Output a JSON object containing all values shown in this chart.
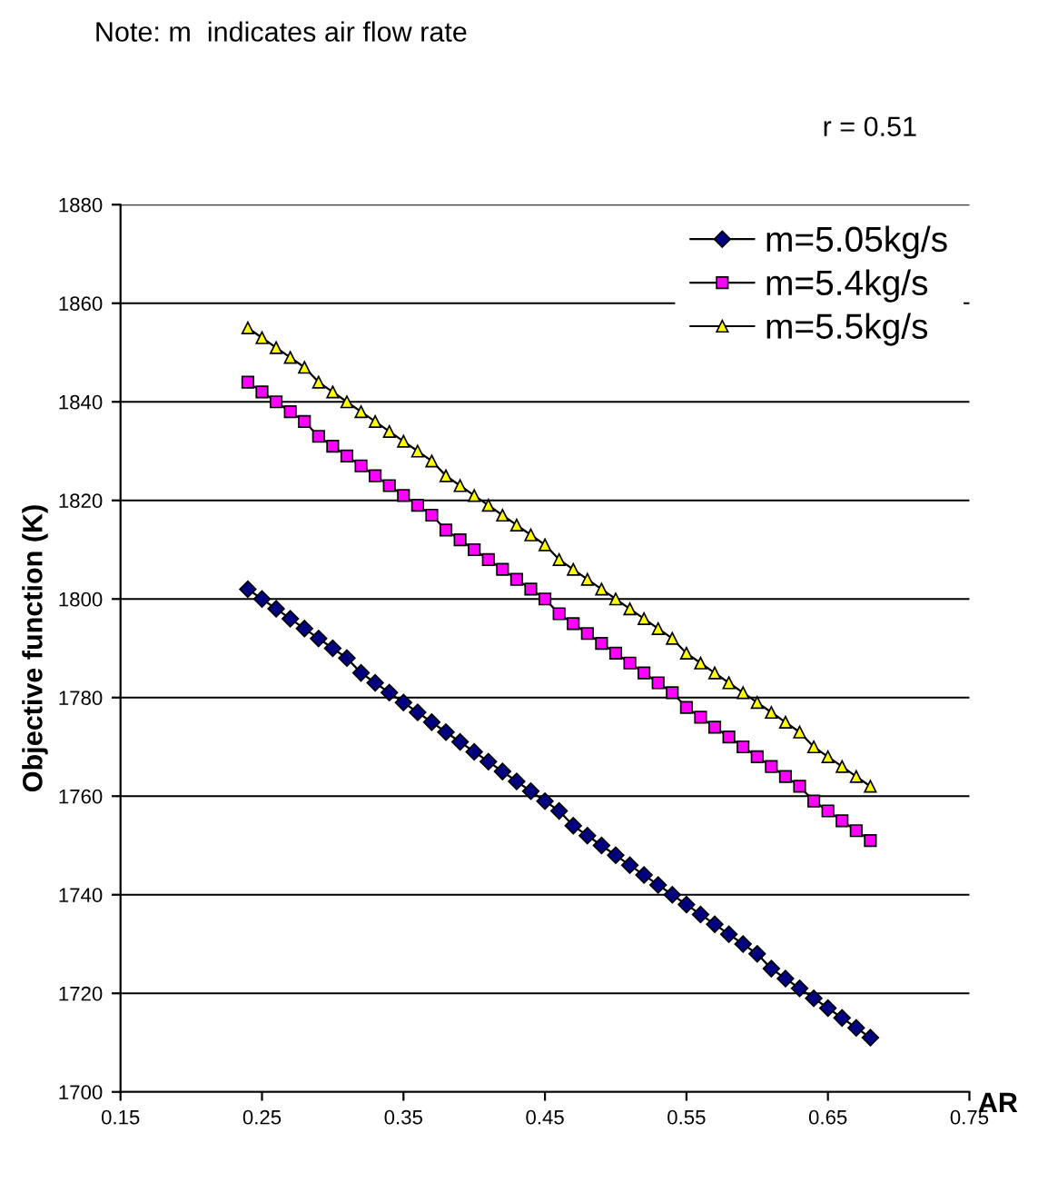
{
  "chart_data": {
    "type": "line",
    "title": "r = 0.51",
    "xlabel": "AR",
    "ylabel": "Objective function (K)",
    "annotations": [
      "Note: m  indicates air flow rate"
    ],
    "x": [
      0.24,
      0.25,
      0.26,
      0.27,
      0.28,
      0.29,
      0.3,
      0.31,
      0.32,
      0.33,
      0.34,
      0.35,
      0.36,
      0.37,
      0.38,
      0.39,
      0.4,
      0.41,
      0.42,
      0.43,
      0.44,
      0.45,
      0.46,
      0.47,
      0.48,
      0.49,
      0.5,
      0.51,
      0.52,
      0.53,
      0.54,
      0.55,
      0.56,
      0.57,
      0.58,
      0.59,
      0.6,
      0.61,
      0.62,
      0.63,
      0.64,
      0.65,
      0.66,
      0.67,
      0.68
    ],
    "series": [
      {
        "name": "m=5.05kg/s",
        "color": "#000080",
        "marker": "diamond",
        "values": [
          1802,
          1800,
          1798,
          1796,
          1794,
          1792,
          1790,
          1788,
          1785,
          1783,
          1781,
          1779,
          1777,
          1775,
          1773,
          1771,
          1769,
          1767,
          1765,
          1763,
          1761,
          1759,
          1757,
          1754,
          1752,
          1750,
          1748,
          1746,
          1744,
          1742,
          1740,
          1738,
          1736,
          1734,
          1732,
          1730,
          1728,
          1725,
          1723,
          1721,
          1719,
          1717,
          1715,
          1713,
          1711
        ]
      },
      {
        "name": "m=5.4kg/s",
        "color": "#ff00ff",
        "marker": "square",
        "values": [
          1844,
          1842,
          1840,
          1838,
          1836,
          1833,
          1831,
          1829,
          1827,
          1825,
          1823,
          1821,
          1819,
          1817,
          1814,
          1812,
          1810,
          1808,
          1806,
          1804,
          1802,
          1800,
          1797,
          1795,
          1793,
          1791,
          1789,
          1787,
          1785,
          1783,
          1781,
          1778,
          1776,
          1774,
          1772,
          1770,
          1768,
          1766,
          1764,
          1762,
          1759,
          1757,
          1755,
          1753,
          1751
        ]
      },
      {
        "name": "m=5.5kg/s",
        "color": "#ffff00",
        "marker": "triangle",
        "values": [
          1855,
          1853,
          1851,
          1849,
          1847,
          1844,
          1842,
          1840,
          1838,
          1836,
          1834,
          1832,
          1830,
          1828,
          1825,
          1823,
          1821,
          1819,
          1817,
          1815,
          1813,
          1811,
          1808,
          1806,
          1804,
          1802,
          1800,
          1798,
          1796,
          1794,
          1792,
          1789,
          1787,
          1785,
          1783,
          1781,
          1779,
          1777,
          1775,
          1773,
          1770,
          1768,
          1766,
          1764,
          1762
        ]
      }
    ],
    "xlim": [
      0.15,
      0.75
    ],
    "xticks": [
      0.15,
      0.25,
      0.35,
      0.45,
      0.55,
      0.65,
      0.75
    ],
    "ylim": [
      1700,
      1880
    ],
    "yticks": [
      1700,
      1720,
      1740,
      1760,
      1780,
      1800,
      1820,
      1840,
      1860,
      1880
    ],
    "grid": "y",
    "legend": "top right",
    "line_style": "solid"
  }
}
